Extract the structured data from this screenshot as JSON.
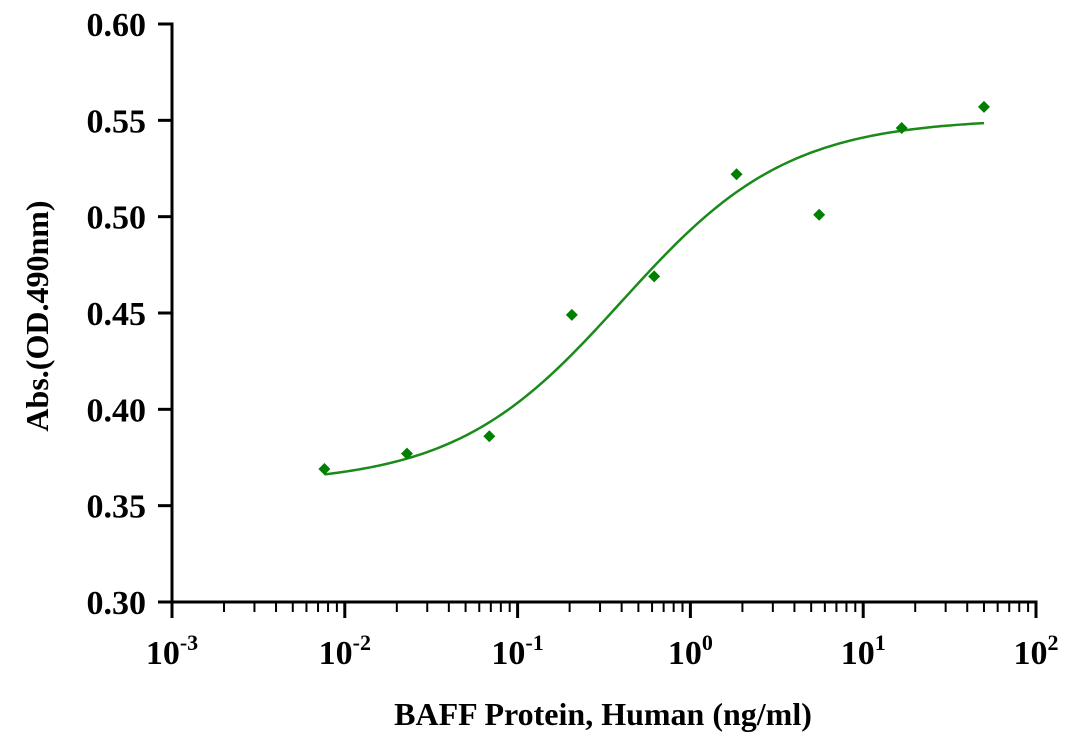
{
  "chart_data": {
    "type": "scatter",
    "title": "",
    "xlabel": "BAFF Protein, Human (ng/ml)",
    "ylabel": "Abs.(OD.490nm)",
    "x_scale": "log",
    "xlim": [
      0.001,
      100
    ],
    "ylim": [
      0.3,
      0.6
    ],
    "y_ticks": [
      "0.30",
      "0.35",
      "0.40",
      "0.45",
      "0.50",
      "0.55",
      "0.60"
    ],
    "x_ticks": [
      {
        "base": "10",
        "exp": "-3"
      },
      {
        "base": "10",
        "exp": "-2"
      },
      {
        "base": "10",
        "exp": "-1"
      },
      {
        "base": "10",
        "exp": "0"
      },
      {
        "base": "10",
        "exp": "1"
      },
      {
        "base": "10",
        "exp": "2"
      }
    ],
    "grid": false,
    "legend": "none",
    "marker_color": "#008000",
    "line_color": "#1a8a1a",
    "series": [
      {
        "x": [
          0.00762,
          0.0229,
          0.0686,
          0.206,
          0.617,
          1.85,
          5.56,
          16.7,
          50
        ],
        "y": [
          0.369,
          0.377,
          0.386,
          0.449,
          0.469,
          0.522,
          0.501,
          0.546,
          0.557
        ]
      }
    ],
    "fit": {
      "type": "4PL",
      "bottom": 0.361,
      "top": 0.551,
      "ec50": 0.4,
      "hill": 0.9,
      "x_range": [
        0.00762,
        50
      ]
    }
  }
}
